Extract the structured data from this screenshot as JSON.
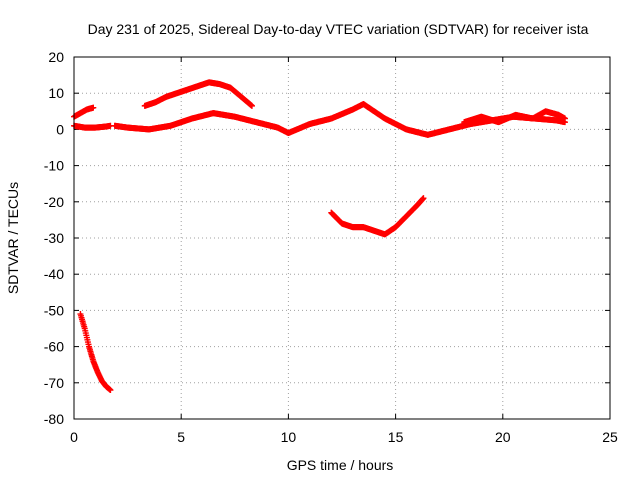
{
  "chart_data": {
    "type": "scatter",
    "title": "Day 231 of 2025, Sidereal Day-to-day VTEC variation (SDTVAR) for receiver ista",
    "xlabel": "GPS time / hours",
    "ylabel": "SDTVAR / TECUs",
    "xlim": [
      0,
      25
    ],
    "ylim": [
      -80,
      20
    ],
    "xticks": [
      0,
      5,
      10,
      15,
      20,
      25
    ],
    "yticks": [
      -80,
      -70,
      -60,
      -50,
      -40,
      -30,
      -20,
      -10,
      0,
      10,
      20
    ],
    "grid": true,
    "marker": "+",
    "color": "#ff0000",
    "series": [
      {
        "name": "arc-1",
        "x": [
          0.0,
          0.3,
          0.6,
          0.9
        ],
        "y": [
          3.5,
          4.5,
          5.5,
          6.0
        ]
      },
      {
        "name": "arc-2",
        "x": [
          0.0,
          0.5,
          1.0,
          1.5,
          1.7
        ],
        "y": [
          1.0,
          0.5,
          0.5,
          0.8,
          1.0
        ]
      },
      {
        "name": "arc-3",
        "x": [
          0.3,
          0.5,
          0.7,
          0.9,
          1.1,
          1.3,
          1.5,
          1.7
        ],
        "y": [
          -51,
          -55,
          -60,
          -64,
          -67,
          -69.5,
          -71,
          -72
        ]
      },
      {
        "name": "arc-4",
        "x": [
          1.9,
          2.5,
          3.5,
          4.5,
          5.5,
          6.5,
          7.5,
          8.5,
          9.5,
          10.0,
          11.0,
          12.0,
          13.0,
          13.5,
          14.5,
          15.5,
          16.5,
          17.5,
          18.5,
          19.5,
          20.5,
          21.5,
          22.5,
          22.9
        ],
        "y": [
          1.0,
          0.5,
          0.0,
          1.0,
          3.0,
          4.5,
          3.5,
          2.0,
          0.5,
          -1.0,
          1.5,
          3.0,
          5.5,
          7.0,
          3.0,
          0.0,
          -1.5,
          0.0,
          1.5,
          2.5,
          3.5,
          3.0,
          2.5,
          2.0
        ]
      },
      {
        "name": "arc-5",
        "x": [
          3.3,
          3.8,
          4.3,
          4.8,
          5.3,
          5.8,
          6.3,
          6.8,
          7.3,
          7.8,
          8.3
        ],
        "y": [
          6.5,
          7.5,
          9.0,
          10.0,
          11.0,
          12.0,
          13.0,
          12.5,
          11.5,
          9.0,
          6.5
        ]
      },
      {
        "name": "arc-6",
        "x": [
          12.0,
          12.5,
          13.0,
          13.5,
          14.0,
          14.5,
          15.0,
          15.5,
          16.0,
          16.3
        ],
        "y": [
          -23,
          -26,
          -27,
          -27,
          -28,
          -29,
          -27,
          -24,
          -21,
          -19
        ]
      },
      {
        "name": "arc-7",
        "x": [
          18.2,
          19.0,
          19.8,
          20.6,
          21.4,
          22.0,
          22.6,
          22.9
        ],
        "y": [
          2.0,
          3.5,
          2.0,
          4.0,
          3.0,
          5.0,
          4.0,
          3.0
        ]
      }
    ]
  }
}
